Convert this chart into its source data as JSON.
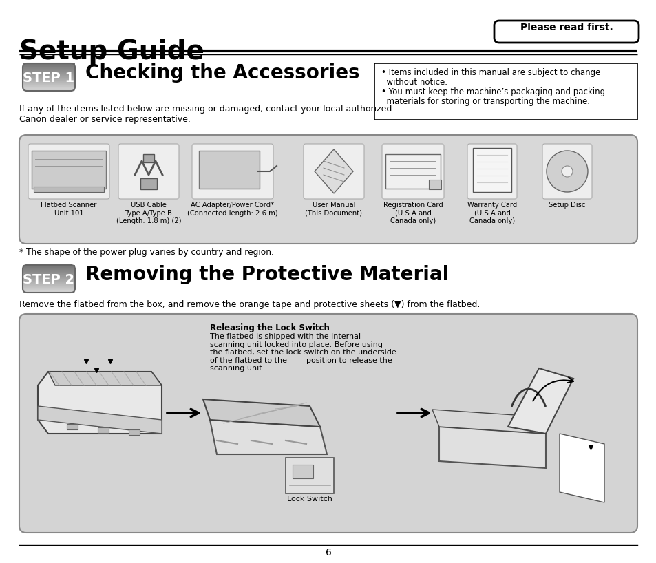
{
  "title": "Setup Guide",
  "please_read": "Please read first.",
  "step1_label": "STEP 1",
  "step1_title": "Checking the Accessories",
  "step1_body": "If any of the items listed below are missing or damaged, contact your local authorized\nCanon dealer or service representative.",
  "notice_line1": "• Items included in this manual are subject to change",
  "notice_line2": "  without notice.",
  "notice_line3": "• You must keep the machine’s packaging and packing",
  "notice_line4": "  materials for storing or transporting the machine.",
  "accessories": [
    {
      "name": "Flatbed Scanner\nUnit 101"
    },
    {
      "name": "USB Cable\nType A/Type B\n(Length: 1.8 m) (2)"
    },
    {
      "name": "AC Adapter/Power Cord*\n(Connected length: 2.6 m)"
    },
    {
      "name": "User Manual\n(This Document)"
    },
    {
      "name": "Registration Card\n(U.S.A and\nCanada only)"
    },
    {
      "name": "Warranty Card\n(U.S.A and\nCanada only)"
    },
    {
      "name": "Setup Disc"
    }
  ],
  "footnote": "* The shape of the power plug varies by country and region.",
  "step2_label": "STEP 2",
  "step2_title": "Removing the Protective Material",
  "step2_body": "Remove the flatbed from the box, and remove the orange tape and protective sheets (▼) from the flatbed.",
  "lock_switch_title": "Releasing the Lock Switch",
  "lock_switch_body": "The flatbed is shipped with the internal\nscanning unit locked into place. Before using\nthe flatbed, set the lock switch on the underside\nof the flatbed to the        position to release the\nscanning unit.",
  "lock_switch_label": "Lock Switch",
  "page_number": "6",
  "bg_color": "#ffffff",
  "acc_box_color": "#d8d8d8",
  "diagram_bg": "#d4d4d4",
  "step_dark": "#808080",
  "step_light": "#c8c8c8",
  "line_color": "#000000"
}
